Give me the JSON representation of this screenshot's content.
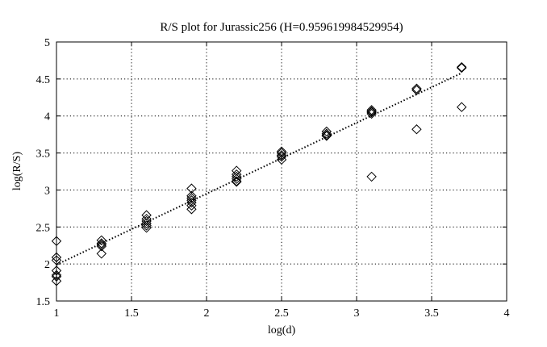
{
  "chart_data": {
    "type": "scatter",
    "title": "R/S plot for Jurassic256 (H=0.959619984529954)",
    "xlabel": "log(d)",
    "ylabel": "log(R/S)",
    "xlim": [
      1,
      4
    ],
    "ylim": [
      1.5,
      5
    ],
    "xticks": [
      1,
      1.5,
      2,
      2.5,
      3,
      3.5,
      4
    ],
    "yticks": [
      1.5,
      2,
      2.5,
      3,
      3.5,
      4,
      4.5,
      5
    ],
    "xtick_labels": [
      "1",
      "1.5",
      "2",
      "2.5",
      "3",
      "3.5",
      "4"
    ],
    "ytick_labels": [
      "1.5",
      "2",
      "2.5",
      "3",
      "3.5",
      "4",
      "4.5",
      "5"
    ],
    "grid": true,
    "marker": "diamond",
    "marker_color": "#000000",
    "series": [
      {
        "points": [
          [
            1.0,
            2.31
          ],
          [
            1.0,
            2.09
          ],
          [
            1.0,
            2.05
          ],
          [
            1.0,
            1.91
          ],
          [
            1.0,
            1.85
          ],
          [
            1.0,
            1.83
          ],
          [
            1.0,
            1.77
          ],
          [
            1.3,
            2.32
          ],
          [
            1.3,
            2.28
          ],
          [
            1.3,
            2.26
          ],
          [
            1.3,
            2.24
          ],
          [
            1.3,
            2.14
          ],
          [
            1.6,
            2.66
          ],
          [
            1.6,
            2.61
          ],
          [
            1.6,
            2.58
          ],
          [
            1.6,
            2.55
          ],
          [
            1.6,
            2.52
          ],
          [
            1.6,
            2.49
          ],
          [
            1.9,
            3.02
          ],
          [
            1.9,
            2.92
          ],
          [
            1.9,
            2.89
          ],
          [
            1.9,
            2.86
          ],
          [
            1.9,
            2.83
          ],
          [
            1.9,
            2.79
          ],
          [
            1.9,
            2.74
          ],
          [
            2.2,
            3.26
          ],
          [
            2.2,
            3.21
          ],
          [
            2.2,
            3.18
          ],
          [
            2.2,
            3.15
          ],
          [
            2.2,
            3.12
          ],
          [
            2.2,
            3.11
          ],
          [
            2.5,
            3.52
          ],
          [
            2.5,
            3.5
          ],
          [
            2.5,
            3.47
          ],
          [
            2.5,
            3.45
          ],
          [
            2.5,
            3.41
          ],
          [
            2.8,
            3.79
          ],
          [
            2.8,
            3.76
          ],
          [
            2.8,
            3.74
          ],
          [
            2.8,
            3.73
          ],
          [
            3.1,
            4.08
          ],
          [
            3.1,
            4.06
          ],
          [
            3.1,
            4.05
          ],
          [
            3.1,
            4.03
          ],
          [
            3.1,
            3.18
          ],
          [
            3.4,
            4.37
          ],
          [
            3.4,
            4.35
          ],
          [
            3.4,
            3.82
          ],
          [
            3.7,
            4.66
          ],
          [
            3.7,
            4.65
          ],
          [
            3.7,
            4.12
          ]
        ]
      }
    ],
    "fit_line": {
      "style": "dotted",
      "x": [
        1.0,
        3.7
      ],
      "y": [
        1.99,
        4.58
      ]
    }
  }
}
